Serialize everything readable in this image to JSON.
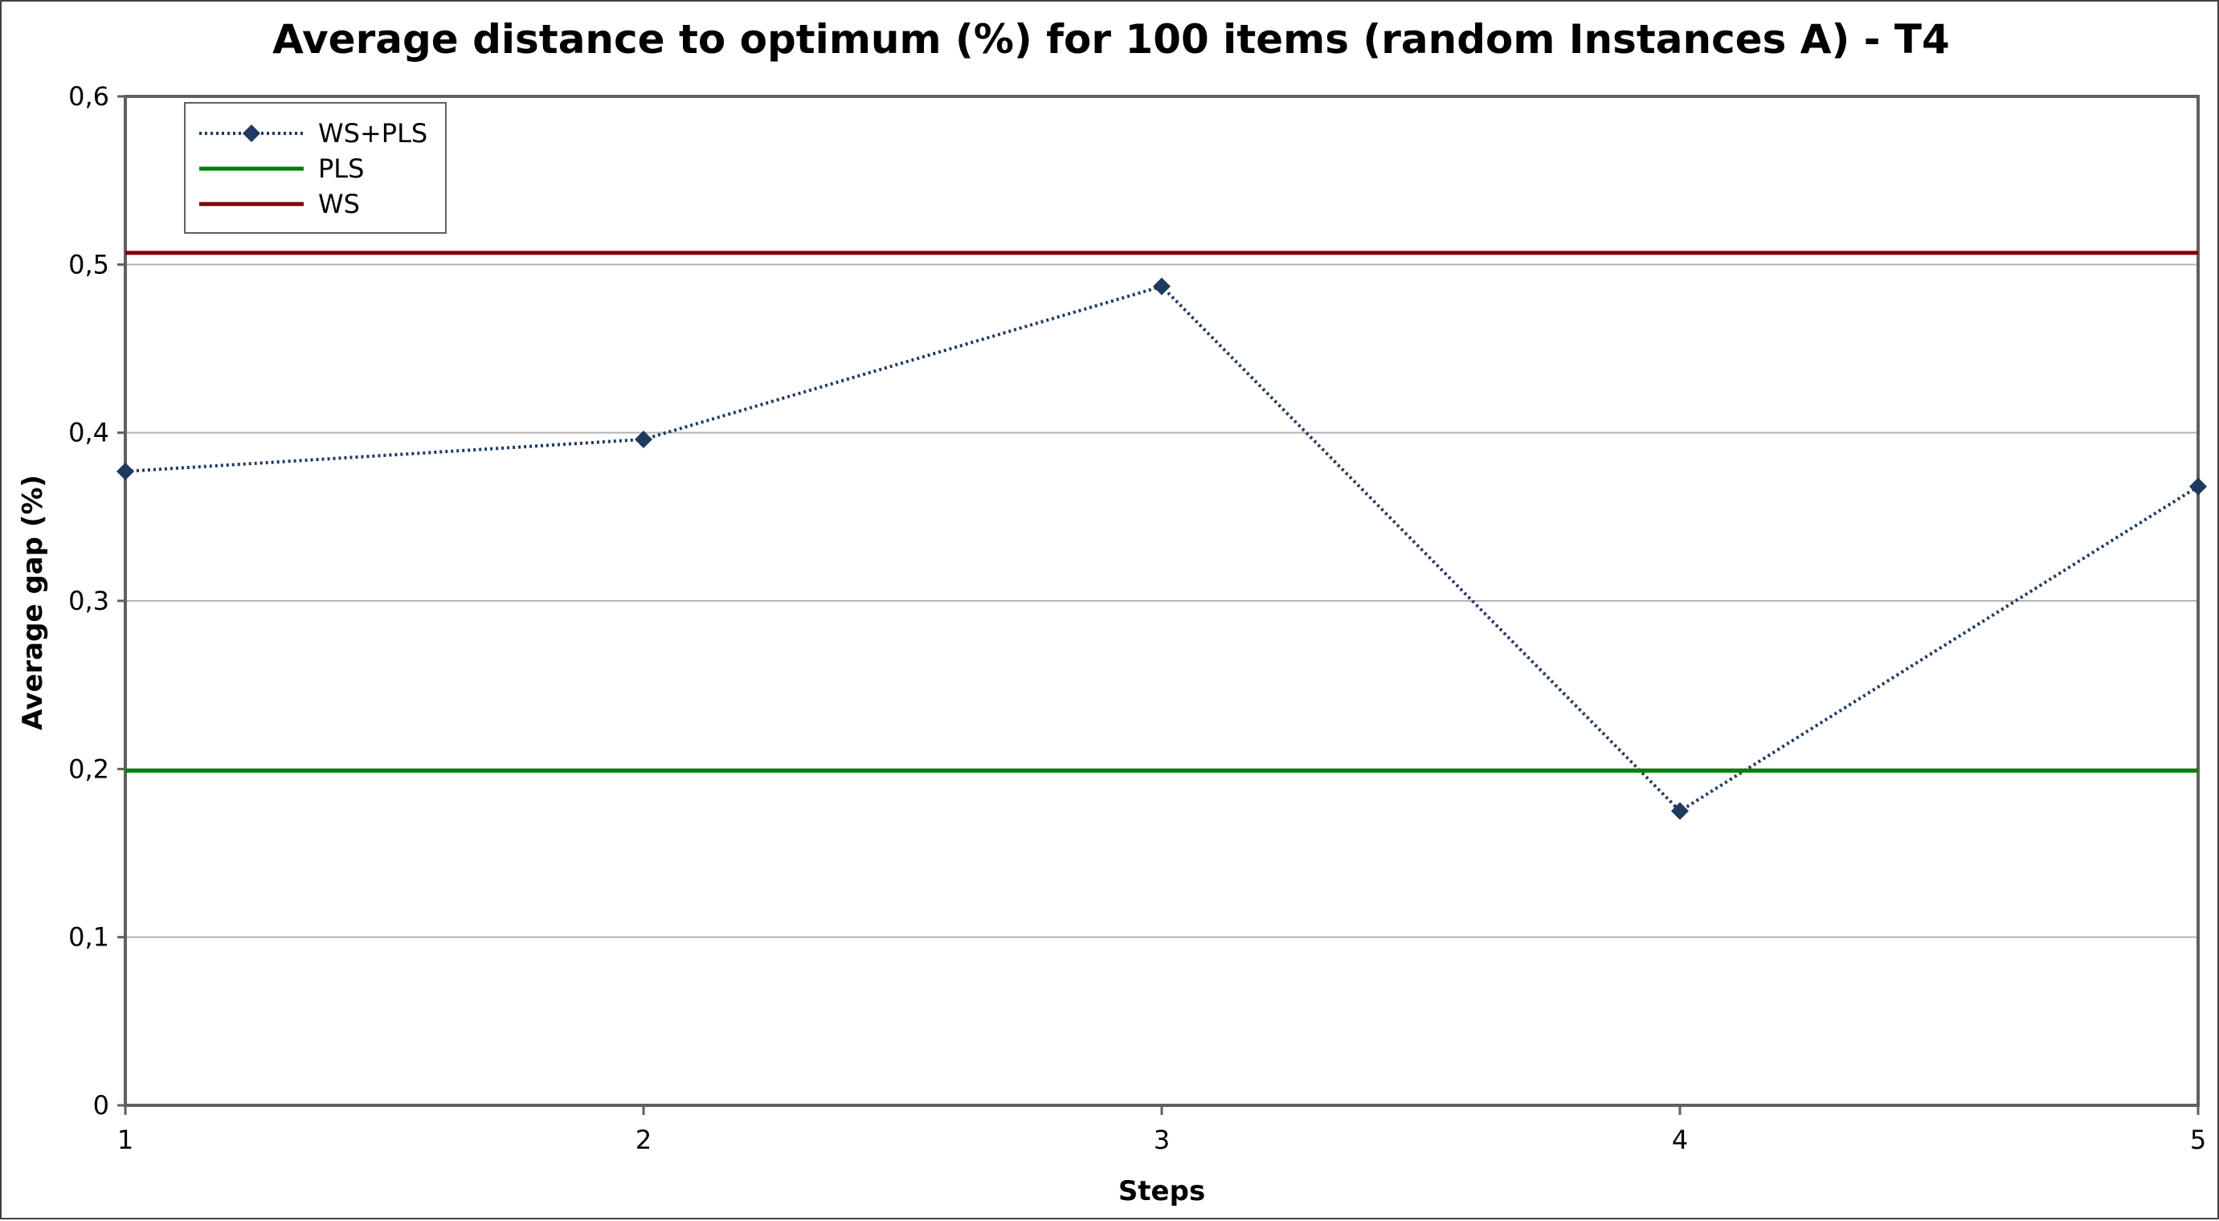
{
  "chart_data": {
    "type": "line",
    "title": "Average distance to optimum (%) for 100 items (random Instances A) - T4",
    "xlabel": "Steps",
    "ylabel": "Average gap  (%)",
    "x": [
      1,
      2,
      3,
      4,
      5
    ],
    "x_tick_labels": [
      "1",
      "2",
      "3",
      "4",
      "5"
    ],
    "y_tick_labels": [
      "0",
      "0,1",
      "0,2",
      "0,3",
      "0,4",
      "0,5",
      "0,6"
    ],
    "y_ticks": [
      0,
      0.1,
      0.2,
      0.3,
      0.4,
      0.5,
      0.6
    ],
    "xlim": [
      1,
      5
    ],
    "ylim": [
      0,
      0.6
    ],
    "grid": "horizontal",
    "legend_position": "top-left",
    "series": [
      {
        "name": "WS+PLS",
        "values": [
          0.377,
          0.396,
          0.487,
          0.175,
          0.368
        ],
        "color": "#1f3a5f",
        "style": "dotted",
        "marker": "diamond"
      },
      {
        "name": "PLS",
        "values": [
          0.199,
          0.199,
          0.199,
          0.199,
          0.199
        ],
        "color": "#008000",
        "style": "solid",
        "marker": "none"
      },
      {
        "name": "WS",
        "values": [
          0.507,
          0.507,
          0.507,
          0.507,
          0.507
        ],
        "color": "#800000",
        "style": "solid",
        "marker": "none"
      }
    ]
  }
}
